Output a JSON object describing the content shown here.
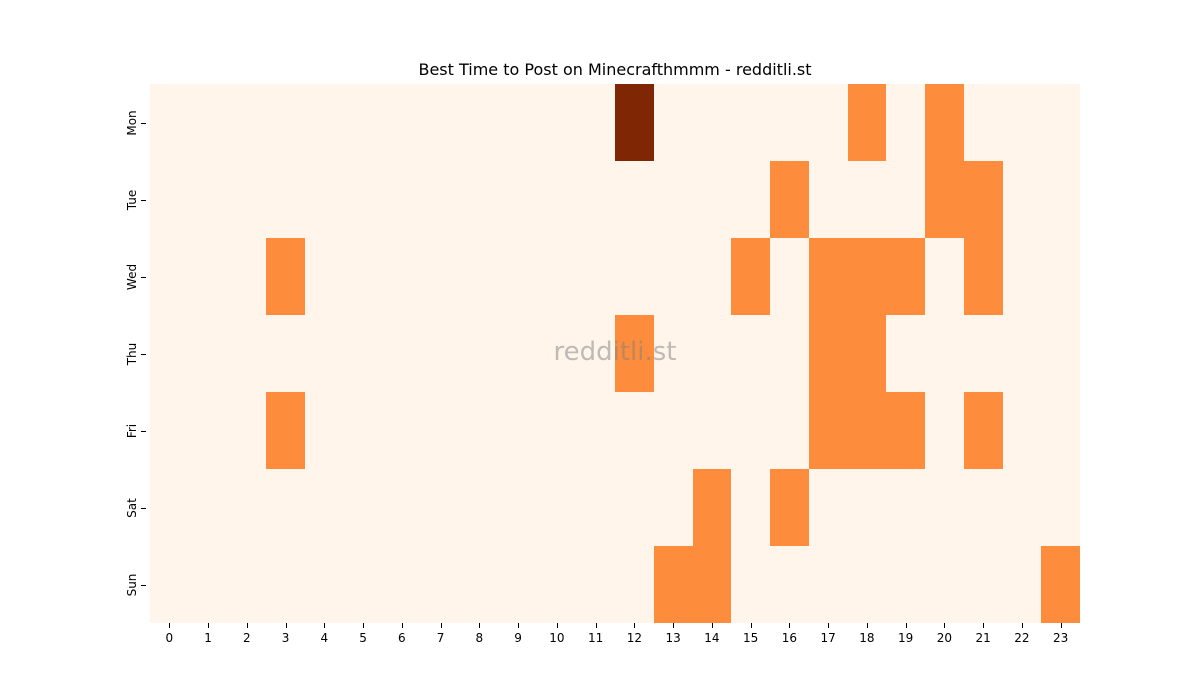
{
  "chart_data": {
    "type": "heatmap",
    "title": "Best Time to Post on Minecrafthmmm - redditli.st",
    "xlabel": "",
    "ylabel": "",
    "x": [
      "0",
      "1",
      "2",
      "3",
      "4",
      "5",
      "6",
      "7",
      "8",
      "9",
      "10",
      "11",
      "12",
      "13",
      "14",
      "15",
      "16",
      "17",
      "18",
      "19",
      "20",
      "21",
      "22",
      "23"
    ],
    "y": [
      "Mon",
      "Tue",
      "Wed",
      "Thu",
      "Fri",
      "Sat",
      "Sun"
    ],
    "values": [
      [
        0,
        0,
        0,
        0,
        0,
        0,
        0,
        0,
        0,
        0,
        0,
        0,
        2,
        0,
        0,
        0,
        0,
        0,
        1,
        0,
        1,
        0,
        0,
        0
      ],
      [
        0,
        0,
        0,
        0,
        0,
        0,
        0,
        0,
        0,
        0,
        0,
        0,
        0,
        0,
        0,
        0,
        1,
        0,
        0,
        0,
        1,
        1,
        0,
        0
      ],
      [
        0,
        0,
        0,
        1,
        0,
        0,
        0,
        0,
        0,
        0,
        0,
        0,
        0,
        0,
        0,
        1,
        0,
        1,
        1,
        1,
        0,
        1,
        0,
        0
      ],
      [
        0,
        0,
        0,
        0,
        0,
        0,
        0,
        0,
        0,
        0,
        0,
        0,
        1,
        0,
        0,
        0,
        0,
        1,
        1,
        0,
        0,
        0,
        0,
        0
      ],
      [
        0,
        0,
        0,
        1,
        0,
        0,
        0,
        0,
        0,
        0,
        0,
        0,
        0,
        0,
        0,
        0,
        0,
        1,
        1,
        1,
        0,
        1,
        0,
        0
      ],
      [
        0,
        0,
        0,
        0,
        0,
        0,
        0,
        0,
        0,
        0,
        0,
        0,
        0,
        0,
        1,
        0,
        1,
        0,
        0,
        0,
        0,
        0,
        0,
        0
      ],
      [
        0,
        0,
        0,
        0,
        0,
        0,
        0,
        0,
        0,
        0,
        0,
        0,
        0,
        1,
        1,
        0,
        0,
        0,
        0,
        0,
        0,
        0,
        0,
        1
      ]
    ],
    "colormap": "Oranges",
    "colors": {
      "0": "#fff5eb",
      "1": "#fd8d3c",
      "2": "#7f2704"
    },
    "grid": false,
    "legend": "none",
    "watermark": "redditli.st"
  }
}
